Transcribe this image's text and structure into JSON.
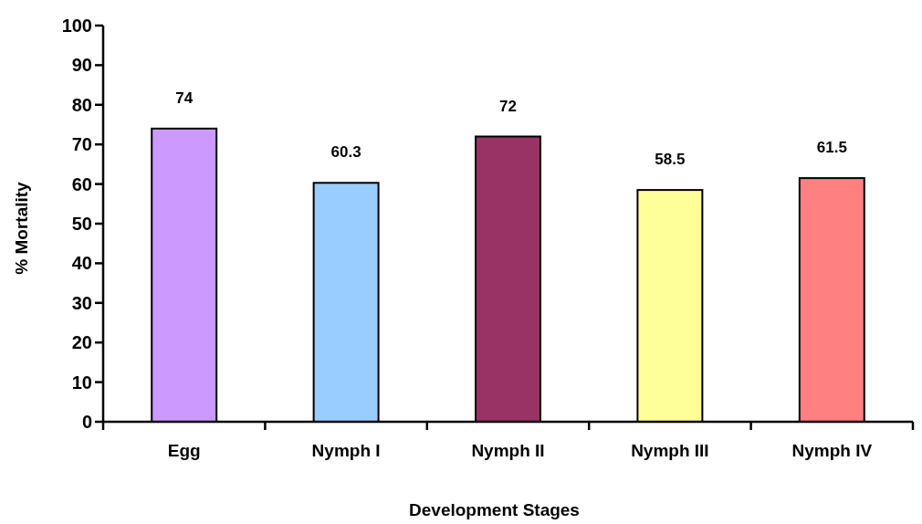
{
  "chart_data": {
    "type": "bar",
    "xlabel": "Development Stages",
    "ylabel": "% Mortality",
    "categories": [
      "Egg",
      "Nymph I",
      "Nymph II",
      "Nymph III",
      "Nymph IV"
    ],
    "values": [
      74,
      60.3,
      72,
      58.5,
      61.5
    ],
    "colors": [
      "#cc99ff",
      "#99ccff",
      "#993366",
      "#ffff99",
      "#ff8080"
    ],
    "ylim": [
      0,
      100
    ],
    "yticks": [
      0,
      10,
      20,
      30,
      40,
      50,
      60,
      70,
      80,
      90,
      100
    ],
    "data_labels": true
  }
}
